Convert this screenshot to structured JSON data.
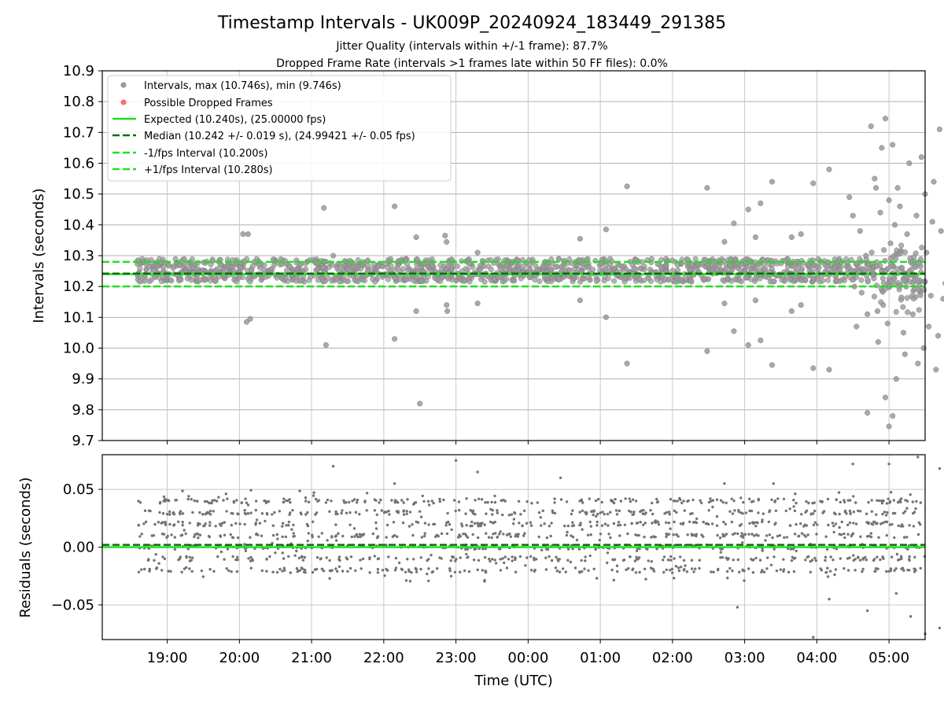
{
  "chart_data": [
    {
      "type": "scatter",
      "title": "Timestamp Intervals - UK009P_20240924_183449_291385",
      "subtitle_lines": [
        "Jitter Quality (intervals within +/-1 frame): 87.7%",
        "Dropped Frame Rate (intervals >1 frames late within 50 FF files): 0.0%"
      ],
      "xlabel": "",
      "ylabel": "Intervals (seconds)",
      "ylim": [
        9.7,
        10.9
      ],
      "yticks": [
        "9.7",
        "9.8",
        "9.9",
        "10.0",
        "10.1",
        "10.2",
        "10.3",
        "10.4",
        "10.5",
        "10.6",
        "10.7",
        "10.8",
        "10.9"
      ],
      "xlim": [
        "18:06",
        "05:30"
      ],
      "grid": true,
      "legend_position": "top-left",
      "legend": [
        "Intervals, max (10.746s), min (9.746s)",
        "Possible Dropped Frames",
        "Expected (10.240s), (25.00000 fps)",
        "Median (10.242 +/- 0.019 s), (24.99421 +/- 0.05 fps)",
        "-1/fps Interval (10.200s)",
        "+1/fps Interval (10.280s)"
      ],
      "reference_lines": [
        {
          "name": "Expected",
          "y": 10.24,
          "style": "solid",
          "color": "#1fe11f"
        },
        {
          "name": "Median",
          "y": 10.242,
          "style": "dashed",
          "color": "#0b6e0b"
        },
        {
          "name": "-1/fps Interval",
          "y": 10.2,
          "style": "dashed",
          "color": "#1fe11f"
        },
        {
          "name": "+1/fps Interval",
          "y": 10.28,
          "style": "dashed",
          "color": "#1fe11f"
        }
      ],
      "band": {
        "x_range": [
          "18:35",
          "04:45"
        ],
        "y_range": [
          10.215,
          10.29
        ]
      },
      "points": [
        [
          20.05,
          10.37
        ],
        [
          20.12,
          10.37
        ],
        [
          20.1,
          10.085
        ],
        [
          20.15,
          10.095
        ],
        [
          21.17,
          10.455
        ],
        [
          21.2,
          10.01
        ],
        [
          21.3,
          10.3
        ],
        [
          22.15,
          10.46
        ],
        [
          22.15,
          10.03
        ],
        [
          22.45,
          10.12
        ],
        [
          22.45,
          10.36
        ],
        [
          22.5,
          9.82
        ],
        [
          22.85,
          10.365
        ],
        [
          22.87,
          10.345
        ],
        [
          22.87,
          10.14
        ],
        [
          22.88,
          10.12
        ],
        [
          23.3,
          10.31
        ],
        [
          23.3,
          10.145
        ],
        [
          24.72,
          10.355
        ],
        [
          24.72,
          10.155
        ],
        [
          25.08,
          10.385
        ],
        [
          25.08,
          10.1
        ],
        [
          25.37,
          10.525
        ],
        [
          25.37,
          9.95
        ],
        [
          26.48,
          10.52
        ],
        [
          26.48,
          9.99
        ],
        [
          26.72,
          10.345
        ],
        [
          26.72,
          10.145
        ],
        [
          26.85,
          10.405
        ],
        [
          26.85,
          10.055
        ],
        [
          27.05,
          10.45
        ],
        [
          27.05,
          10.01
        ],
        [
          27.15,
          10.36
        ],
        [
          27.15,
          10.155
        ],
        [
          27.22,
          10.47
        ],
        [
          27.22,
          10.025
        ],
        [
          27.38,
          10.54
        ],
        [
          27.38,
          9.945
        ],
        [
          27.65,
          10.36
        ],
        [
          27.65,
          10.12
        ],
        [
          27.78,
          10.37
        ],
        [
          27.78,
          10.14
        ],
        [
          27.95,
          10.535
        ],
        [
          27.95,
          9.935
        ],
        [
          28.17,
          10.58
        ],
        [
          28.17,
          9.93
        ],
        [
          28.45,
          10.49
        ],
        [
          28.5,
          10.43
        ],
        [
          28.55,
          10.07
        ],
        [
          28.6,
          10.38
        ],
        [
          28.7,
          10.11
        ],
        [
          28.75,
          10.72
        ],
        [
          28.8,
          10.55
        ],
        [
          28.85,
          10.02
        ],
        [
          28.9,
          10.65
        ],
        [
          28.95,
          9.84
        ],
        [
          29.0,
          10.48
        ],
        [
          29.05,
          10.66
        ],
        [
          29.1,
          9.9
        ],
        [
          29.15,
          10.46
        ],
        [
          29.2,
          10.05
        ],
        [
          29.25,
          10.37
        ],
        [
          29.3,
          10.28
        ],
        [
          29.35,
          10.19
        ],
        [
          29.4,
          9.95
        ],
        [
          29.45,
          10.62
        ],
        [
          29.5,
          10.5
        ],
        [
          29.55,
          10.07
        ],
        [
          29.6,
          10.41
        ],
        [
          29.65,
          9.93
        ],
        [
          29.7,
          10.71
        ],
        [
          29.75,
          10.16
        ],
        [
          29.8,
          10.45
        ],
        [
          29.85,
          10.02
        ],
        [
          28.95,
          10.745
        ],
        [
          29.0,
          9.746
        ],
        [
          29.05,
          9.78
        ],
        [
          28.7,
          9.79
        ],
        [
          28.82,
          10.52
        ],
        [
          28.88,
          10.44
        ],
        [
          28.92,
          10.14
        ],
        [
          28.98,
          10.08
        ],
        [
          29.02,
          10.34
        ],
        [
          29.12,
          10.52
        ],
        [
          29.18,
          10.26
        ],
        [
          29.28,
          10.6
        ],
        [
          29.33,
          10.11
        ],
        [
          29.38,
          10.43
        ],
        [
          29.42,
          10.22
        ],
        [
          29.48,
          10.0
        ],
        [
          29.52,
          10.31
        ],
        [
          29.58,
          10.17
        ],
        [
          29.62,
          10.54
        ],
        [
          29.68,
          10.04
        ],
        [
          29.72,
          10.38
        ],
        [
          29.78,
          10.21
        ],
        [
          29.82,
          10.64
        ],
        [
          29.88,
          9.9
        ],
        [
          28.62,
          10.18
        ],
        [
          28.68,
          10.3
        ],
        [
          28.78,
          10.24
        ],
        [
          28.84,
          10.12
        ],
        [
          28.58,
          10.25
        ],
        [
          28.52,
          10.2
        ],
        [
          29.22,
          9.98
        ],
        [
          29.08,
          10.4
        ]
      ]
    },
    {
      "type": "scatter",
      "title": "",
      "xlabel": "Time (UTC)",
      "ylabel": "Residuals (seconds)",
      "ylim": [
        -0.08,
        0.08
      ],
      "yticks": [
        "−0.05",
        "0.00",
        "0.05"
      ],
      "xticks": [
        "19:00",
        "20:00",
        "21:00",
        "22:00",
        "23:00",
        "00:00",
        "01:00",
        "02:00",
        "03:00",
        "04:00",
        "05:00"
      ],
      "xlim": [
        "18:06",
        "05:30"
      ],
      "grid": true,
      "reference_lines": [
        {
          "name": "Expected",
          "y": 0.0,
          "style": "solid",
          "color": "#1fe11f"
        },
        {
          "name": "Median",
          "y": 0.002,
          "style": "dashed",
          "color": "#0b6e0b"
        }
      ],
      "band": {
        "x_range": [
          "18:35",
          "05:30"
        ],
        "y_range": [
          -0.03,
          0.05
        ]
      },
      "points": [
        [
          21.3,
          0.07
        ],
        [
          22.15,
          0.055
        ],
        [
          23.3,
          0.065
        ],
        [
          23.0,
          0.075
        ],
        [
          24.45,
          0.06
        ],
        [
          26.72,
          0.055
        ],
        [
          27.4,
          0.055
        ],
        [
          28.5,
          0.072
        ],
        [
          29.0,
          0.072
        ],
        [
          29.4,
          0.078
        ],
        [
          29.7,
          0.068
        ],
        [
          29.3,
          -0.06
        ],
        [
          29.5,
          -0.075
        ],
        [
          29.7,
          -0.07
        ],
        [
          29.85,
          -0.05
        ],
        [
          28.7,
          -0.055
        ],
        [
          28.17,
          -0.045
        ],
        [
          27.95,
          -0.078
        ],
        [
          26.9,
          -0.052
        ],
        [
          29.1,
          -0.04
        ]
      ]
    }
  ]
}
